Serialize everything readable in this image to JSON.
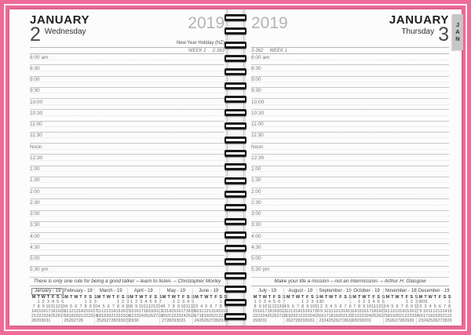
{
  "colors": {
    "background_pink": "#ee6b99",
    "tab_gray": "#c6c6c6",
    "rule_gray": "#c9c9c9",
    "year_gray": "#b3b3b3"
  },
  "dow": [
    "M",
    "T",
    "W",
    "T",
    "F",
    "S",
    "S"
  ],
  "times": [
    "8:00 am",
    "8:30",
    "9:00",
    "9:30",
    "10:00",
    "10:30",
    "11:00",
    "11:30",
    "Noon",
    "12:30",
    "1:00",
    "1:30",
    "2:00",
    "2:30",
    "3:00",
    "3:30",
    "4:00",
    "4:30",
    "5:00",
    "5:30 pm"
  ],
  "page_left": {
    "month": "JANUARY",
    "day": "2",
    "weekday": "Wednesday",
    "year": "2019",
    "holiday": "New Year Holiday (NZ)",
    "week_label": "WEEK 1",
    "day_of_year": "2-363",
    "quote": "There is only one rule for being a good talker – learn to listen. – Christopher Morley",
    "minicals": [
      {
        "title": "January - 19",
        "highlight": true,
        "weeks": [
          [
            "",
            "1",
            "2",
            "3",
            "4",
            "5",
            "6"
          ],
          [
            "7",
            "8",
            "9",
            "10",
            "11",
            "12",
            "13"
          ],
          [
            "14",
            "15",
            "16",
            "17",
            "18",
            "19",
            "20"
          ],
          [
            "21",
            "22",
            "23",
            "24",
            "25",
            "26",
            "27"
          ],
          [
            "28",
            "29",
            "30",
            "31",
            "",
            "",
            ""
          ]
        ]
      },
      {
        "title": "February - 19",
        "highlight": false,
        "weeks": [
          [
            "",
            "",
            "",
            "",
            "1",
            "2",
            "3"
          ],
          [
            "4",
            "5",
            "6",
            "7",
            "8",
            "9",
            "10"
          ],
          [
            "11",
            "12",
            "13",
            "14",
            "15",
            "16",
            "17"
          ],
          [
            "18",
            "19",
            "20",
            "21",
            "22",
            "23",
            "24"
          ],
          [
            "25",
            "26",
            "27",
            "28",
            "",
            "",
            ""
          ]
        ]
      },
      {
        "title": "March - 19",
        "highlight": false,
        "weeks": [
          [
            "",
            "",
            "",
            "",
            "1",
            "2",
            "3"
          ],
          [
            "4",
            "5",
            "6",
            "7",
            "8",
            "9",
            "10"
          ],
          [
            "11",
            "12",
            "13",
            "14",
            "15",
            "16",
            "17"
          ],
          [
            "18",
            "19",
            "20",
            "21",
            "22",
            "23",
            "24"
          ],
          [
            "25",
            "26",
            "27",
            "28",
            "29",
            "30",
            "31"
          ]
        ]
      },
      {
        "title": "April - 19",
        "highlight": false,
        "weeks": [
          [
            "1",
            "2",
            "3",
            "4",
            "5",
            "6",
            "7"
          ],
          [
            "8",
            "9",
            "10",
            "11",
            "12",
            "13",
            "14"
          ],
          [
            "15",
            "16",
            "17",
            "18",
            "19",
            "20",
            "21"
          ],
          [
            "22",
            "23",
            "24",
            "25",
            "26",
            "27",
            "28"
          ],
          [
            "29",
            "30",
            "",
            "",
            "",
            "",
            ""
          ]
        ]
      },
      {
        "title": "May - 19",
        "highlight": false,
        "weeks": [
          [
            "",
            "",
            "1",
            "2",
            "3",
            "4",
            "5"
          ],
          [
            "6",
            "7",
            "8",
            "9",
            "10",
            "11",
            "12"
          ],
          [
            "13",
            "14",
            "15",
            "16",
            "17",
            "18",
            "19"
          ],
          [
            "20",
            "21",
            "22",
            "23",
            "24",
            "25",
            "26"
          ],
          [
            "27",
            "28",
            "29",
            "30",
            "31",
            "",
            ""
          ]
        ]
      },
      {
        "title": "June - 19",
        "highlight": false,
        "weeks": [
          [
            "",
            "",
            "",
            "",
            "",
            "1",
            "2"
          ],
          [
            "3",
            "4",
            "5",
            "6",
            "7",
            "8",
            "9"
          ],
          [
            "10",
            "11",
            "12",
            "13",
            "14",
            "15",
            "16"
          ],
          [
            "17",
            "18",
            "19",
            "20",
            "21",
            "22",
            "23"
          ],
          [
            "24",
            "25",
            "26",
            "27",
            "28",
            "29",
            "30"
          ]
        ]
      }
    ]
  },
  "page_right": {
    "year": "2019",
    "month": "JANUARY",
    "day": "3",
    "weekday": "Thursday",
    "holiday": "",
    "day_of_year": "3-362",
    "week_label": "WEEK 1",
    "tab_letters": [
      "J",
      "A",
      "N"
    ],
    "quote": "Make your life a mission – not an intermission. – Arthur H. Glasgow",
    "minicals": [
      {
        "title": "July - 19",
        "highlight": false,
        "weeks": [
          [
            "1",
            "2",
            "3",
            "4",
            "5",
            "6",
            "7"
          ],
          [
            "8",
            "9",
            "10",
            "11",
            "12",
            "13",
            "14"
          ],
          [
            "15",
            "16",
            "17",
            "18",
            "19",
            "20",
            "21"
          ],
          [
            "22",
            "23",
            "24",
            "25",
            "26",
            "27",
            "28"
          ],
          [
            "29",
            "30",
            "31",
            "",
            "",
            "",
            ""
          ]
        ]
      },
      {
        "title": "August - 19",
        "highlight": false,
        "weeks": [
          [
            "",
            "",
            "",
            "1",
            "2",
            "3",
            "4"
          ],
          [
            "5",
            "6",
            "7",
            "8",
            "9",
            "10",
            "11"
          ],
          [
            "12",
            "13",
            "14",
            "15",
            "16",
            "17",
            "18"
          ],
          [
            "19",
            "20",
            "21",
            "22",
            "23",
            "24",
            "25"
          ],
          [
            "26",
            "27",
            "28",
            "29",
            "30",
            "31",
            ""
          ]
        ]
      },
      {
        "title": "September - 19",
        "highlight": false,
        "weeks": [
          [
            "30",
            "",
            "",
            "",
            "",
            "",
            "1"
          ],
          [
            "2",
            "3",
            "4",
            "5",
            "6",
            "7",
            "8"
          ],
          [
            "9",
            "10",
            "11",
            "12",
            "13",
            "14",
            "15"
          ],
          [
            "16",
            "17",
            "18",
            "19",
            "20",
            "21",
            "22"
          ],
          [
            "23",
            "24",
            "25",
            "26",
            "27",
            "28",
            "29"
          ]
        ]
      },
      {
        "title": "October - 19",
        "highlight": false,
        "weeks": [
          [
            "",
            "1",
            "2",
            "3",
            "4",
            "5",
            "6"
          ],
          [
            "7",
            "8",
            "9",
            "10",
            "11",
            "12",
            "13"
          ],
          [
            "14",
            "15",
            "16",
            "17",
            "18",
            "19",
            "20"
          ],
          [
            "21",
            "22",
            "23",
            "24",
            "25",
            "26",
            "27"
          ],
          [
            "28",
            "29",
            "30",
            "31",
            "",
            "",
            ""
          ]
        ]
      },
      {
        "title": "November - 19",
        "highlight": false,
        "weeks": [
          [
            "",
            "",
            "",
            "",
            "1",
            "2",
            "3"
          ],
          [
            "4",
            "5",
            "6",
            "7",
            "8",
            "9",
            "10"
          ],
          [
            "11",
            "12",
            "13",
            "14",
            "15",
            "16",
            "17"
          ],
          [
            "18",
            "19",
            "20",
            "21",
            "22",
            "23",
            "24"
          ],
          [
            "25",
            "26",
            "27",
            "28",
            "29",
            "30",
            ""
          ]
        ]
      },
      {
        "title": "December - 19",
        "highlight": false,
        "weeks": [
          [
            "30",
            "31",
            "",
            "",
            "",
            "",
            "1"
          ],
          [
            "2",
            "3",
            "4",
            "5",
            "6",
            "7",
            "8"
          ],
          [
            "9",
            "10",
            "11",
            "12",
            "13",
            "14",
            "15"
          ],
          [
            "16",
            "17",
            "18",
            "19",
            "20",
            "21",
            "22"
          ],
          [
            "23",
            "24",
            "25",
            "26",
            "27",
            "28",
            "29"
          ]
        ]
      }
    ]
  }
}
